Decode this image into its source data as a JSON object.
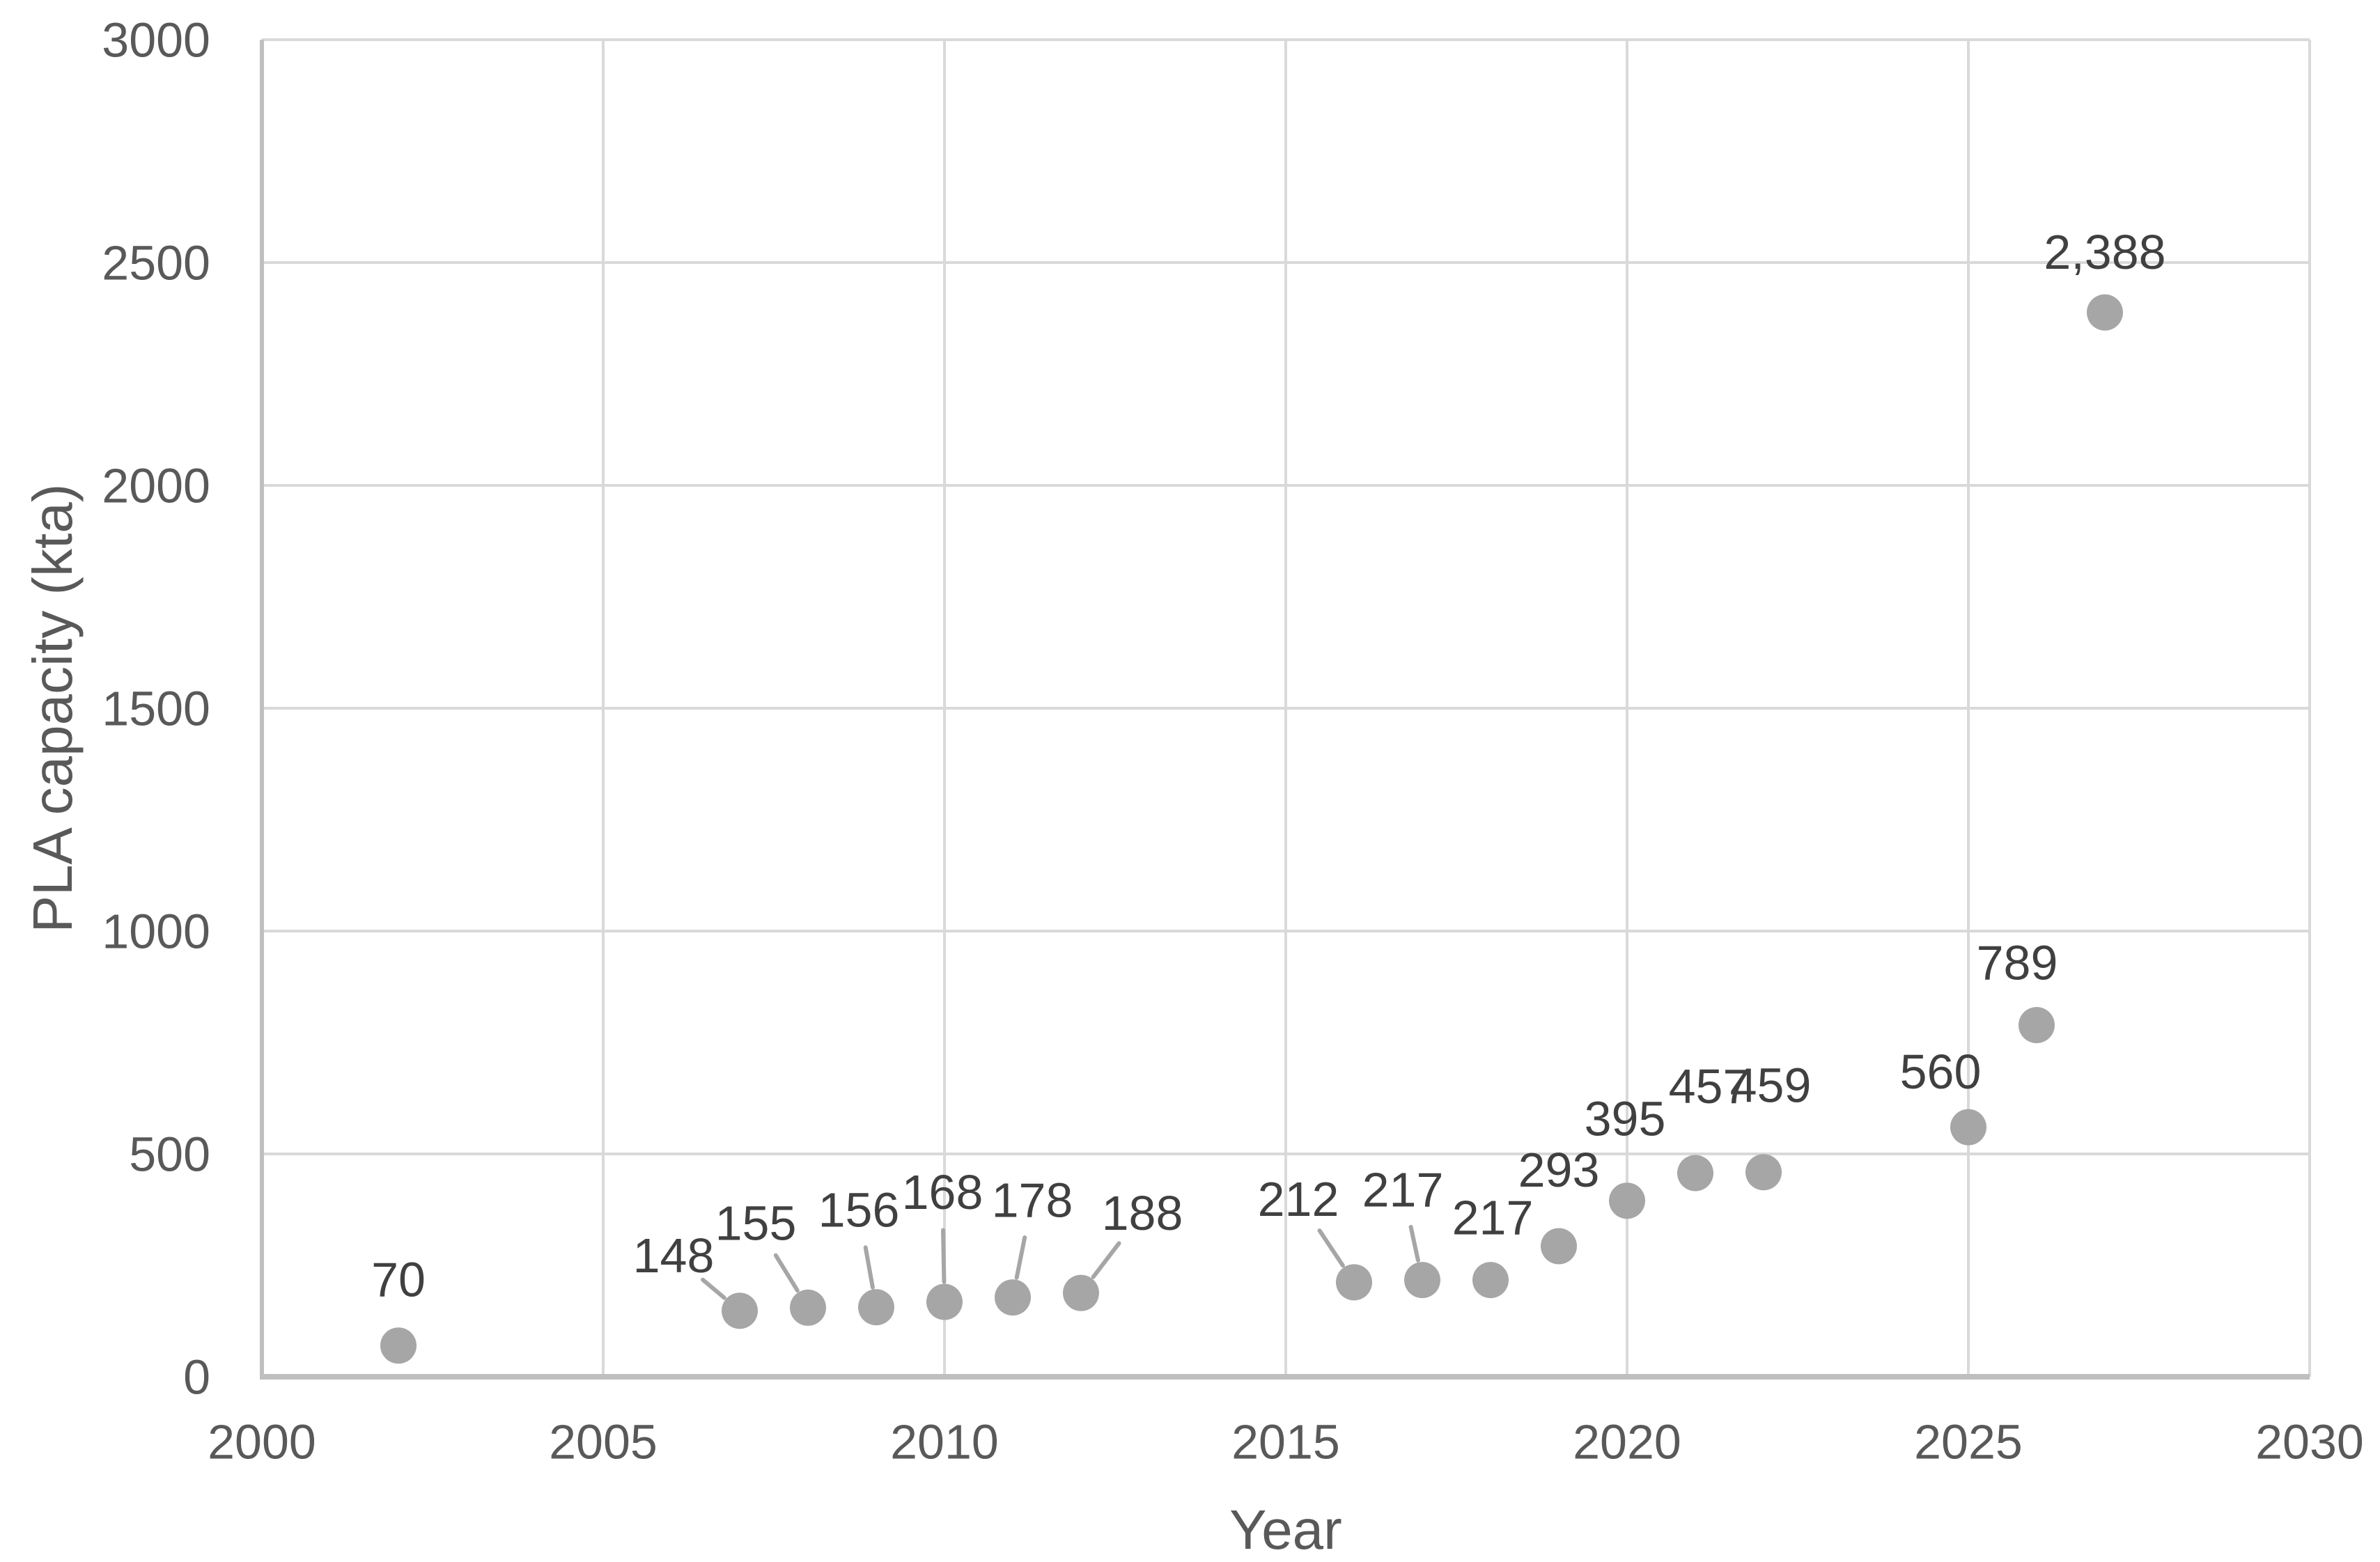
{
  "chart_data": {
    "type": "scatter",
    "title": "",
    "xlabel": "Year",
    "ylabel": "PLA capacity (kta)",
    "xlim": [
      2000,
      2030
    ],
    "ylim": [
      0,
      3000
    ],
    "grid": true,
    "legend": "none",
    "x_ticks": [
      {
        "value": 2000,
        "label": "2000"
      },
      {
        "value": 2005,
        "label": "2005"
      },
      {
        "value": 2010,
        "label": "2010"
      },
      {
        "value": 2015,
        "label": "2015"
      },
      {
        "value": 2020,
        "label": "2020"
      },
      {
        "value": 2025,
        "label": "2025"
      },
      {
        "value": 2030,
        "label": "2030"
      }
    ],
    "y_ticks": [
      {
        "value": 0,
        "label": "0"
      },
      {
        "value": 500,
        "label": "500"
      },
      {
        "value": 1000,
        "label": "1000"
      },
      {
        "value": 1500,
        "label": "1500"
      },
      {
        "value": 2000,
        "label": "2000"
      },
      {
        "value": 2500,
        "label": "2500"
      },
      {
        "value": 3000,
        "label": "3000"
      }
    ],
    "series": [
      {
        "name": "PLA capacity",
        "points": [
          {
            "year": 2002,
            "value": 70,
            "label": "70",
            "label_dx": 0,
            "label_dy": -95,
            "leader": false
          },
          {
            "year": 2007,
            "value": 148,
            "label": "148",
            "label_dx": -95,
            "label_dy": -80,
            "leader": true
          },
          {
            "year": 2008,
            "value": 155,
            "label": "155",
            "label_dx": -75,
            "label_dy": -122,
            "leader": true
          },
          {
            "year": 2009,
            "value": 156,
            "label": "156",
            "label_dx": -25,
            "label_dy": -140,
            "leader": true
          },
          {
            "year": 2010,
            "value": 168,
            "label": "168",
            "label_dx": -3,
            "label_dy": -158,
            "leader": true
          },
          {
            "year": 2011,
            "value": 178,
            "label": "178",
            "label_dx": 28,
            "label_dy": -140,
            "leader": true
          },
          {
            "year": 2012,
            "value": 188,
            "label": "188",
            "label_dx": 88,
            "label_dy": -115,
            "leader": true
          },
          {
            "year": 2016,
            "value": 212,
            "label": "212",
            "label_dx": -80,
            "label_dy": -120,
            "leader": true
          },
          {
            "year": 2017,
            "value": 217,
            "label": "217",
            "label_dx": -28,
            "label_dy": -130,
            "leader": true
          },
          {
            "year": 2018,
            "value": 217,
            "label": "217",
            "label_dx": 3,
            "label_dy": -90,
            "leader": false
          },
          {
            "year": 2019,
            "value": 293,
            "label": "293",
            "label_dx": 0,
            "label_dy": -110,
            "leader": false
          },
          {
            "year": 2020,
            "value": 395,
            "label": "395",
            "label_dx": -3,
            "label_dy": -118,
            "leader": false
          },
          {
            "year": 2021,
            "value": 457,
            "label": "457",
            "label_dx": 20,
            "label_dy": -125,
            "leader": false
          },
          {
            "year": 2022,
            "value": 459,
            "label": "459",
            "label_dx": 10,
            "label_dy": -125,
            "leader": false
          },
          {
            "year": 2025,
            "value": 560,
            "label": "560",
            "label_dx": -40,
            "label_dy": -80,
            "leader": false
          },
          {
            "year": 2026,
            "value": 789,
            "label": "789",
            "label_dx": -28,
            "label_dy": -90,
            "leader": false
          },
          {
            "year": 2027,
            "value": 2388,
            "label": "2,388",
            "label_dx": 0,
            "label_dy": -87,
            "leader": false
          }
        ]
      }
    ],
    "colors": {
      "background": "#ffffff",
      "marker": "#a6a6a6",
      "leader_line": "#a6a6a6",
      "data_label": "#404040",
      "tick_label": "#595959",
      "axis_title": "#595959",
      "gridline": "#d9d9d9",
      "axis_line": "#bfbfbf"
    }
  }
}
